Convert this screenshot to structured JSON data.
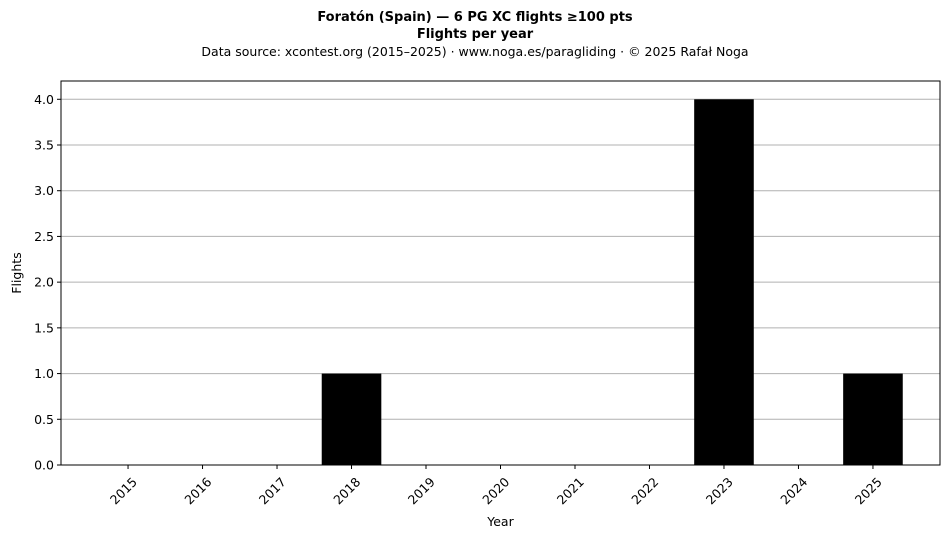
{
  "chart_data": {
    "type": "bar",
    "title": "Foratón (Spain)  —  6 PG XC flights ≥100 pts",
    "subtitle": "Flights per year",
    "source_line": "Data source: xcontest.org (2015–2025)  ·  www.noga.es/paragliding  ·  © 2025 Rafał Noga",
    "xlabel": "Year",
    "ylabel": "Flights",
    "categories": [
      "2015",
      "2016",
      "2017",
      "2018",
      "2019",
      "2020",
      "2021",
      "2022",
      "2023",
      "2024",
      "2025"
    ],
    "values": [
      0,
      0,
      0,
      1,
      0,
      0,
      0,
      0,
      4,
      0,
      1
    ],
    "ylim": [
      0,
      4.2
    ],
    "yticks": [
      0.0,
      0.5,
      1.0,
      1.5,
      2.0,
      2.5,
      3.0,
      3.5,
      4.0
    ],
    "ytick_labels": [
      "0.0",
      "0.5",
      "1.0",
      "1.5",
      "2.0",
      "2.5",
      "3.0",
      "3.5",
      "4.0"
    ],
    "grid": "y-major",
    "bar_color": "#000000",
    "grid_color": "#b0b0b0",
    "xtick_rotation": -45
  }
}
